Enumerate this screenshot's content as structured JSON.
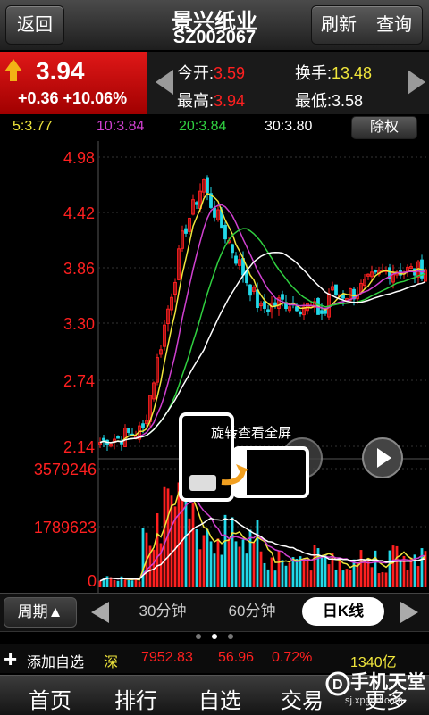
{
  "header": {
    "back_label": "返回",
    "stock_name": "景兴纸业",
    "stock_code": "SZ002067",
    "refresh_label": "刷新",
    "query_label": "查询"
  },
  "quote": {
    "price": "3.94",
    "change": "+0.36 +10.06%",
    "open_label": "今开:",
    "open": "3.59",
    "high_label": "最高:",
    "high": "3.94",
    "turnover_label": "换手:",
    "turnover": "13.48",
    "low_label": "最低:",
    "low": "3.58"
  },
  "ma": {
    "ma5": "5:3.77",
    "ma10": "10:3.84",
    "ma20": "20:3.84",
    "ma30": "30:3.80",
    "exright_label": "除权"
  },
  "colors": {
    "up": "#ff2020",
    "down": "#22d8e8",
    "ma5": "#f0e63c",
    "ma10": "#d040d0",
    "ma20": "#30d040",
    "ma30": "#ffffff"
  },
  "chart_data": {
    "type": "candlestick",
    "price_axis_labels": [
      "4.98",
      "4.42",
      "3.86",
      "3.30",
      "2.74",
      "2.14"
    ],
    "volume_axis_labels": [
      "3579246",
      "1789623",
      "0"
    ],
    "ylim": [
      2.14,
      4.98
    ],
    "volume_max": 3579246
  },
  "popup": {
    "text": "旋转查看全屏"
  },
  "period": {
    "period_label": "周期▲",
    "opt1": "30分钟",
    "opt2": "60分钟",
    "selected": "日K线"
  },
  "index": {
    "add_label": "添加自选",
    "market": "深",
    "value": "7952.83",
    "change": "56.96",
    "percent": "0.72%",
    "amount": "1340亿"
  },
  "tabbar": {
    "tab1": "首页",
    "tab2": "排行",
    "tab3": "自选",
    "tab4": "交易",
    "tab5": "更多"
  },
  "watermark": {
    "title": "手机天堂",
    "url": "sj.xpgod.com"
  }
}
